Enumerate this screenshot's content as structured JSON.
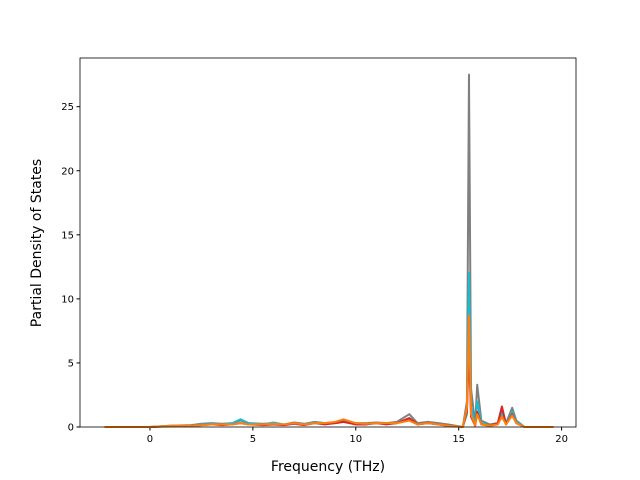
{
  "chart_data": {
    "type": "line",
    "xlabel": "Frequency (THz)",
    "ylabel": "Partial Density of States",
    "x": [
      -2.2,
      0,
      0.5,
      1,
      2,
      2.5,
      3,
      3.5,
      4,
      4.4,
      4.8,
      5.5,
      6,
      6.5,
      7,
      7.5,
      8,
      8.5,
      9,
      9.4,
      10,
      10.5,
      11,
      11.5,
      12,
      12.6,
      13,
      13.5,
      14,
      14.5,
      15.2,
      15.4,
      15.5,
      15.6,
      15.8,
      15.9,
      16.1,
      16.5,
      16.9,
      17.1,
      17.3,
      17.6,
      17.8,
      18.2,
      19.6
    ],
    "series": [
      {
        "color": "#7f7f7f",
        "values": [
          0,
          0,
          0.05,
          0.1,
          0.15,
          0.25,
          0.3,
          0.25,
          0.3,
          0.5,
          0.3,
          0.25,
          0.3,
          0.2,
          0.35,
          0.25,
          0.4,
          0.3,
          0.35,
          0.5,
          0.3,
          0.3,
          0.35,
          0.3,
          0.4,
          1.0,
          0.3,
          0.4,
          0.3,
          0.2,
          0,
          2,
          27.5,
          3,
          0.2,
          3.3,
          0.5,
          0.2,
          0.3,
          1.4,
          0.3,
          1.5,
          0.5,
          0,
          0
        ]
      },
      {
        "color": "#17becf",
        "values": [
          0,
          0,
          0.05,
          0.1,
          0.1,
          0.2,
          0.25,
          0.2,
          0.3,
          0.6,
          0.3,
          0.2,
          0.35,
          0.2,
          0.3,
          0.2,
          0.35,
          0.3,
          0.3,
          0.4,
          0.25,
          0.2,
          0.3,
          0.25,
          0.3,
          0.6,
          0.2,
          0.3,
          0.2,
          0.1,
          0,
          1,
          12,
          1.5,
          0.1,
          2,
          0.3,
          0.1,
          0.2,
          1,
          0.2,
          1.2,
          0.4,
          0,
          0
        ]
      },
      {
        "color": "#d62728",
        "values": [
          0,
          0,
          0.03,
          0.08,
          0.1,
          0.15,
          0.2,
          0.15,
          0.2,
          0.3,
          0.2,
          0.15,
          0.2,
          0.15,
          0.25,
          0.15,
          0.3,
          0.2,
          0.3,
          0.4,
          0.2,
          0.2,
          0.3,
          0.2,
          0.3,
          0.7,
          0.2,
          0.3,
          0.2,
          0.1,
          0,
          1.2,
          6,
          0.8,
          0.1,
          1.2,
          0.2,
          0.1,
          0.3,
          1.6,
          0.2,
          1.0,
          0.3,
          0,
          0
        ]
      },
      {
        "color": "#ff7f0e",
        "values": [
          0,
          0,
          0.05,
          0.1,
          0.1,
          0.15,
          0.2,
          0.2,
          0.2,
          0.3,
          0.2,
          0.2,
          0.25,
          0.2,
          0.3,
          0.2,
          0.3,
          0.3,
          0.4,
          0.6,
          0.3,
          0.25,
          0.3,
          0.3,
          0.3,
          0.5,
          0.2,
          0.3,
          0.2,
          0.1,
          0,
          1.5,
          8.7,
          1,
          0.1,
          1,
          0.2,
          0.1,
          0.2,
          0.8,
          0.2,
          0.9,
          0.3,
          0,
          0
        ]
      }
    ],
    "xlim": [
      -3.4,
      20.7
    ],
    "ylim": [
      0,
      28.8
    ],
    "xticks": [
      0,
      5,
      10,
      15,
      20
    ],
    "yticks": [
      0,
      5,
      10,
      15,
      20,
      25
    ]
  }
}
